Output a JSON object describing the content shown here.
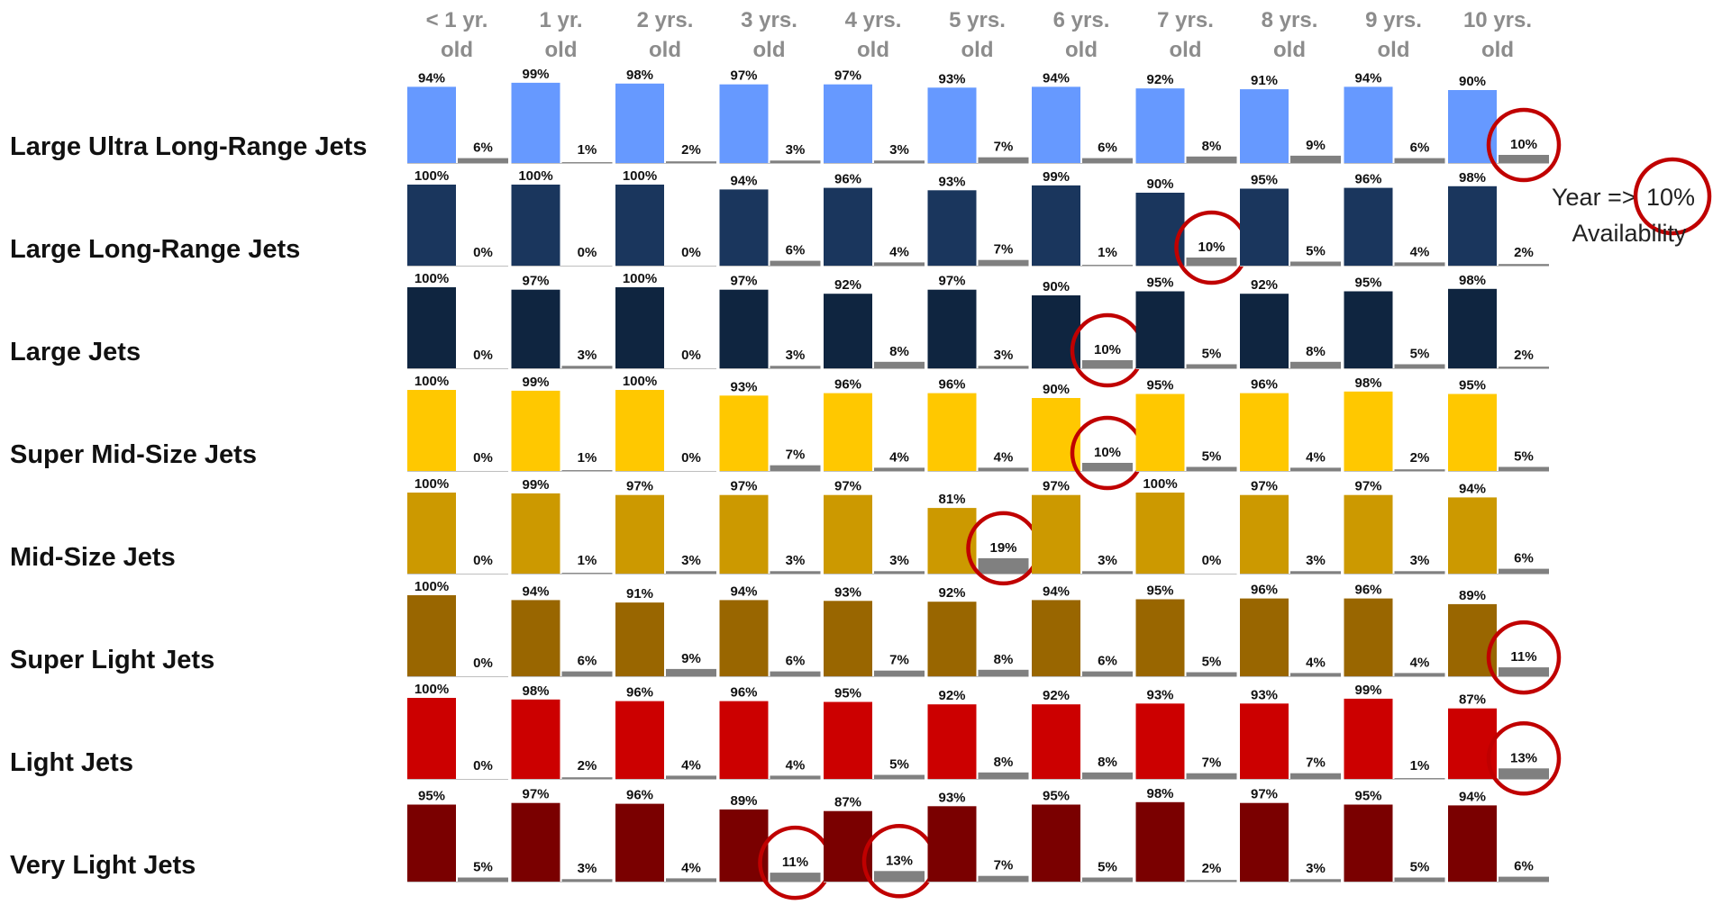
{
  "chart_data": {
    "type": "bar",
    "categories": [
      "< 1 yr. old",
      "1 yr. old",
      "2 yrs. old",
      "3 yrs. old",
      "4 yrs. old",
      "5 yrs. old",
      "6 yrs. old",
      "7 yrs. old",
      "8 yrs. old",
      "9 yrs. old",
      "10 yrs. old",
      ""
    ],
    "category_lines": [
      [
        "< 1 yr.",
        "old"
      ],
      [
        "1 yr.",
        "old"
      ],
      [
        "2 yrs.",
        "old"
      ],
      [
        "3 yrs.",
        "old"
      ],
      [
        "4 yrs.",
        "old"
      ],
      [
        "5 yrs.",
        "old"
      ],
      [
        "6 yrs.",
        "old"
      ],
      [
        "7 yrs.",
        "old"
      ],
      [
        "8 yrs.",
        "old"
      ],
      [
        "9 yrs.",
        "old"
      ],
      [
        "10 yrs.",
        "old"
      ],
      [
        "",
        ""
      ]
    ],
    "value_suffix": "%",
    "ylim": [
      0,
      100
    ],
    "grid": false,
    "legend_note": {
      "prefix": "Year =>",
      "value": "10%",
      "caption": "Availability"
    },
    "groups": [
      {
        "name": "Large Ultra Long-Range Jets",
        "color": "#6699ff",
        "a": [
          94,
          99,
          98,
          97,
          97,
          93,
          94,
          92,
          91,
          94,
          90
        ],
        "b": [
          6,
          1,
          2,
          3,
          3,
          7,
          6,
          8,
          9,
          6,
          10
        ],
        "circled": [
          10
        ]
      },
      {
        "name": "Large Long-Range Jets",
        "color": "#1a365d",
        "a": [
          100,
          100,
          100,
          94,
          96,
          93,
          99,
          90,
          95,
          96,
          98
        ],
        "b": [
          0,
          0,
          0,
          6,
          4,
          7,
          1,
          10,
          5,
          4,
          2
        ],
        "circled": [
          7
        ]
      },
      {
        "name": "Large Jets",
        "color": "#0f2540",
        "a": [
          100,
          97,
          100,
          97,
          92,
          97,
          90,
          95,
          92,
          95,
          98
        ],
        "b": [
          0,
          3,
          0,
          3,
          8,
          3,
          10,
          5,
          8,
          5,
          2
        ],
        "circled": [
          6
        ]
      },
      {
        "name": "Super Mid-Size Jets",
        "color": "#ffc800",
        "a": [
          100,
          99,
          100,
          93,
          96,
          96,
          90,
          95,
          96,
          98,
          95
        ],
        "b": [
          0,
          1,
          0,
          7,
          4,
          4,
          10,
          5,
          4,
          2,
          5
        ],
        "circled": [
          6
        ]
      },
      {
        "name": "Mid-Size Jets",
        "color": "#cc9900",
        "a": [
          100,
          99,
          97,
          97,
          97,
          81,
          97,
          100,
          97,
          97,
          94
        ],
        "b": [
          0,
          1,
          3,
          3,
          3,
          19,
          3,
          0,
          3,
          3,
          6
        ],
        "circled": [
          5
        ]
      },
      {
        "name": "Super Light Jets",
        "color": "#996600",
        "a": [
          100,
          94,
          91,
          94,
          93,
          92,
          94,
          95,
          96,
          96,
          89
        ],
        "b": [
          0,
          6,
          9,
          6,
          7,
          8,
          6,
          5,
          4,
          4,
          11
        ],
        "circled": [
          10
        ]
      },
      {
        "name": "Light Jets",
        "color": "#cc0000",
        "a": [
          100,
          98,
          96,
          96,
          95,
          92,
          92,
          93,
          93,
          99,
          87
        ],
        "b": [
          0,
          2,
          4,
          4,
          5,
          8,
          8,
          7,
          7,
          1,
          13
        ],
        "circled": [
          10
        ]
      },
      {
        "name": "Very Light Jets",
        "color": "#7a0000",
        "a": [
          95,
          97,
          96,
          89,
          87,
          93,
          95,
          98,
          97,
          95,
          94
        ],
        "b": [
          5,
          3,
          4,
          11,
          13,
          7,
          5,
          2,
          3,
          5,
          6
        ],
        "circled": [
          3,
          4
        ]
      }
    ],
    "colors": {
      "secondary_bar": "#808080",
      "baseline": "#bfbfbf",
      "circle": "#c00000"
    }
  }
}
